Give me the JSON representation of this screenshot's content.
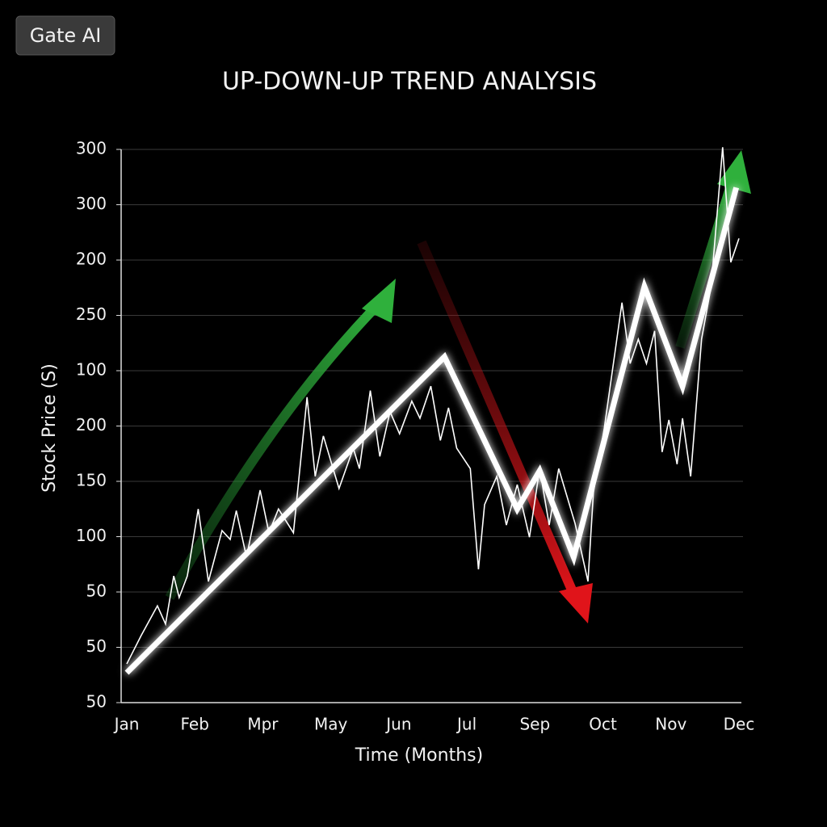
{
  "app_button": "Gate AI",
  "chart_data": {
    "type": "line",
    "title": "UP-DOWN-UP TREND ANALYSIS",
    "xlabel": "Time (Months)",
    "ylabel": "Stock Price (S)",
    "categories": [
      "Jan",
      "Feb",
      "Mpr",
      "May",
      "Jun",
      "Jul",
      "Sep",
      "Oct",
      "Nov",
      "Dec"
    ],
    "y_labels": [
      "50",
      "50",
      "50",
      "100",
      "150",
      "200",
      "100",
      "250",
      "200",
      "300",
      "300"
    ],
    "xlim": [
      0,
      9
    ],
    "ylim": [
      0,
      10
    ],
    "grid": true,
    "series": [
      {
        "color": "#ffffff",
        "x": [
          0,
          0.21,
          0.45,
          0.57,
          0.69,
          0.77,
          0.89,
          1.05,
          1.2,
          1.4,
          1.52,
          1.61,
          1.76,
          1.96,
          2.09,
          2.23,
          2.45,
          2.65,
          2.77,
          2.89,
          3.12,
          3.33,
          3.42,
          3.58,
          3.72,
          3.87,
          4.01,
          4.19,
          4.31,
          4.47,
          4.61,
          4.73,
          4.85,
          5.05,
          5.17,
          5.26,
          5.44,
          5.58,
          5.74,
          5.92,
          6.07,
          6.21,
          6.35,
          6.59,
          6.78,
          6.86,
          7.02,
          7.28,
          7.4,
          7.52,
          7.64,
          7.76,
          7.87,
          7.97,
          8.09,
          8.17,
          8.29,
          8.45,
          8.59,
          8.76,
          8.88,
          9
        ],
        "values": [
          0.7,
          1.21,
          1.75,
          1.42,
          2.29,
          1.9,
          2.29,
          3.5,
          2.19,
          3.11,
          2.95,
          3.47,
          2.63,
          3.84,
          3.07,
          3.5,
          3.07,
          5.52,
          4.09,
          4.82,
          3.87,
          4.6,
          4.23,
          5.64,
          4.45,
          5.26,
          4.86,
          5.45,
          5.14,
          5.72,
          4.74,
          5.33,
          4.6,
          4.23,
          2.41,
          3.58,
          4.09,
          3.21,
          3.94,
          2.99,
          4.23,
          3.21,
          4.23,
          3.24,
          2.19,
          3.8,
          4.96,
          7.23,
          6.13,
          6.57,
          6.13,
          6.72,
          4.53,
          5.11,
          4.31,
          5.14,
          4.09,
          6.57,
          7.52,
          10.04,
          7.96,
          8.39
        ]
      },
      {
        "color": "#ffffff",
        "x": [
          0,
          4.67,
          5.74,
          6.07,
          6.57,
          7.61,
          8.17,
          8.96
        ],
        "values": [
          0.54,
          6.25,
          3.5,
          4.19,
          2.63,
          7.52,
          5.72,
          9.31
        ]
      }
    ]
  }
}
